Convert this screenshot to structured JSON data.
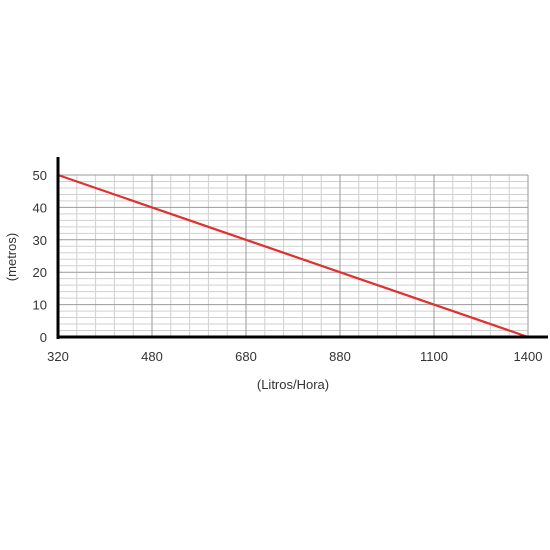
{
  "chart_data": {
    "type": "line",
    "title": "",
    "xlabel": "(Litros/Hora)",
    "ylabel": "(metros)",
    "x_ticks": [
      "320",
      "480",
      "680",
      "880",
      "1100",
      "1400"
    ],
    "y_ticks": [
      "0",
      "10",
      "20",
      "30",
      "40",
      "50"
    ],
    "ylim": [
      0,
      50
    ],
    "grid": true,
    "series": [
      {
        "x": [
          320,
          1400
        ],
        "y": [
          50,
          0
        ],
        "color": "#e03030"
      }
    ]
  },
  "colors": {
    "line": "#e03030",
    "axis": "#000000",
    "grid_major": "#9a9a9a",
    "grid_minor": "#d0d0d0"
  }
}
